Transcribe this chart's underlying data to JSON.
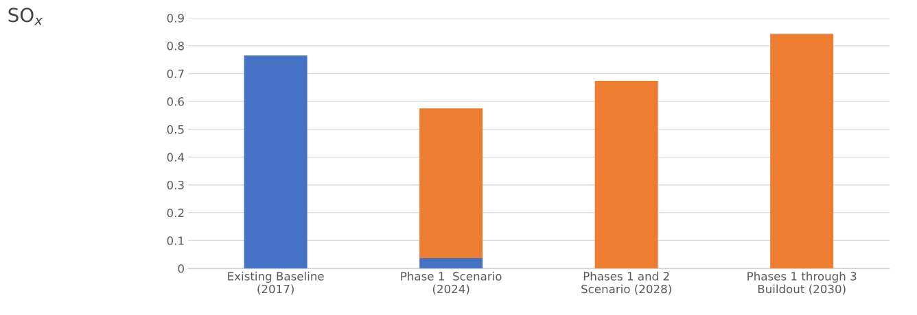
{
  "chart_data": {
    "type": "bar",
    "title": "SO$_{x}$",
    "stacked": true,
    "categories": [
      "Existing Baseline\n(2017)",
      "Phase 1  Scenario\n(2024)",
      "Phases 1 and 2\nScenario (2028)",
      "Phases 1 through 3\nBuildout (2030)"
    ],
    "series": [
      {
        "color": "#4472c4",
        "values": [
          0.765,
          0.037,
          null,
          null
        ]
      },
      {
        "color": "#ed7d31",
        "values": [
          null,
          0.538,
          0.674,
          0.843
        ]
      }
    ],
    "ylim": [
      0,
      0.9
    ],
    "yticks": [
      {
        "value": 0,
        "label": "0"
      },
      0.1,
      0.2,
      0.3,
      0.4,
      0.5,
      0.6,
      0.7,
      0.8,
      0.9
    ],
    "grid": "y",
    "legend": false
  }
}
